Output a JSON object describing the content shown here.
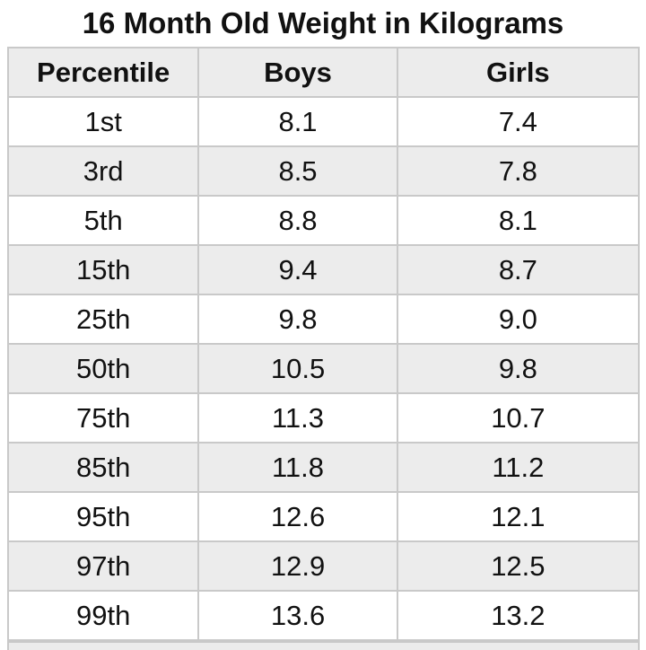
{
  "title": "16 Month Old Weight in Kilograms",
  "table": {
    "columns": [
      "Percentile",
      "Boys",
      "Girls"
    ],
    "rows": [
      {
        "percentile": "1st",
        "boys": "8.1",
        "girls": "7.4"
      },
      {
        "percentile": "3rd",
        "boys": "8.5",
        "girls": "7.8"
      },
      {
        "percentile": "5th",
        "boys": "8.8",
        "girls": "8.1"
      },
      {
        "percentile": "15th",
        "boys": "9.4",
        "girls": "8.7"
      },
      {
        "percentile": "25th",
        "boys": "9.8",
        "girls": "9.0"
      },
      {
        "percentile": "50th",
        "boys": "10.5",
        "girls": "9.8"
      },
      {
        "percentile": "75th",
        "boys": "11.3",
        "girls": "10.7"
      },
      {
        "percentile": "85th",
        "boys": "11.8",
        "girls": "11.2"
      },
      {
        "percentile": "95th",
        "boys": "12.6",
        "girls": "12.1"
      },
      {
        "percentile": "97th",
        "boys": "12.9",
        "girls": "12.5"
      },
      {
        "percentile": "99th",
        "boys": "13.6",
        "girls": "13.2"
      }
    ]
  },
  "colors": {
    "page_bg": "#ffffff",
    "header_bg": "#ececec",
    "row_bg": "#ffffff",
    "row_alt_bg": "#ececec",
    "border": "#c9c9c9",
    "text": "#111111"
  },
  "chart_data": {
    "type": "table",
    "title": "16 Month Old Weight in Kilograms",
    "categories": [
      "1st",
      "3rd",
      "5th",
      "15th",
      "25th",
      "50th",
      "75th",
      "85th",
      "95th",
      "97th",
      "99th"
    ],
    "series": [
      {
        "name": "Boys",
        "values": [
          8.1,
          8.5,
          8.8,
          9.4,
          9.8,
          10.5,
          11.3,
          11.8,
          12.6,
          12.9,
          13.6
        ]
      },
      {
        "name": "Girls",
        "values": [
          7.4,
          7.8,
          8.1,
          8.7,
          9.0,
          9.8,
          10.7,
          11.2,
          12.1,
          12.5,
          13.2
        ]
      }
    ],
    "units": "kg",
    "layout": {
      "striped_rows": true,
      "header_row": true,
      "grid": true
    }
  }
}
